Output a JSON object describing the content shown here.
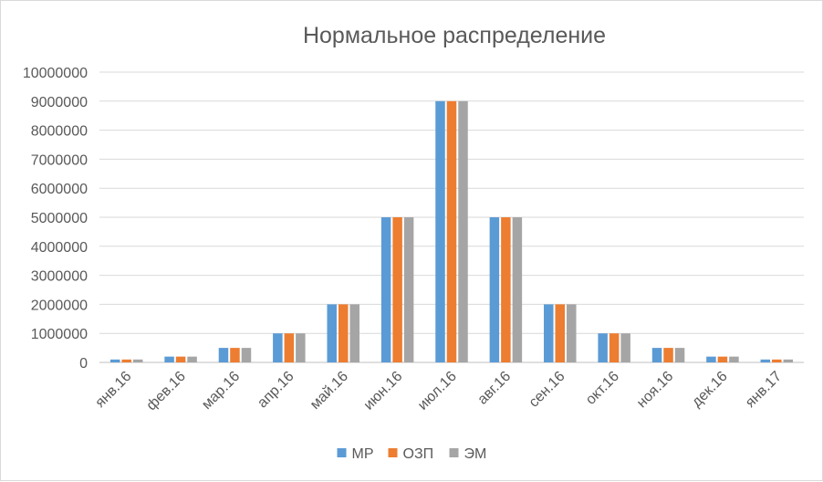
{
  "chart_data": {
    "type": "bar",
    "title": "Нормальное распределение",
    "xlabel": "",
    "ylabel": "",
    "categories": [
      "янв.16",
      "фев.16",
      "мар.16",
      "апр.16",
      "май.16",
      "июн.16",
      "июл.16",
      "авг.16",
      "сен.16",
      "окт.16",
      "ноя.16",
      "дек.16",
      "янв.17"
    ],
    "series": [
      {
        "name": "МР",
        "color": "#5b9bd5",
        "values": [
          100000,
          200000,
          500000,
          1000000,
          2000000,
          5000000,
          9000000,
          5000000,
          2000000,
          1000000,
          500000,
          200000,
          100000
        ]
      },
      {
        "name": "ОЗП",
        "color": "#ed7d31",
        "values": [
          100000,
          200000,
          500000,
          1000000,
          2000000,
          5000000,
          9000000,
          5000000,
          2000000,
          1000000,
          500000,
          200000,
          100000
        ]
      },
      {
        "name": "ЭМ",
        "color": "#a5a5a5",
        "values": [
          100000,
          200000,
          500000,
          1000000,
          2000000,
          5000000,
          9000000,
          5000000,
          2000000,
          1000000,
          500000,
          200000,
          100000
        ]
      }
    ],
    "ylim": [
      0,
      10000000
    ],
    "yticks": [
      "0",
      "1000000",
      "2000000",
      "3000000",
      "4000000",
      "5000000",
      "6000000",
      "7000000",
      "8000000",
      "9000000",
      "10000000"
    ],
    "grid": true,
    "legend_position": "bottom"
  }
}
